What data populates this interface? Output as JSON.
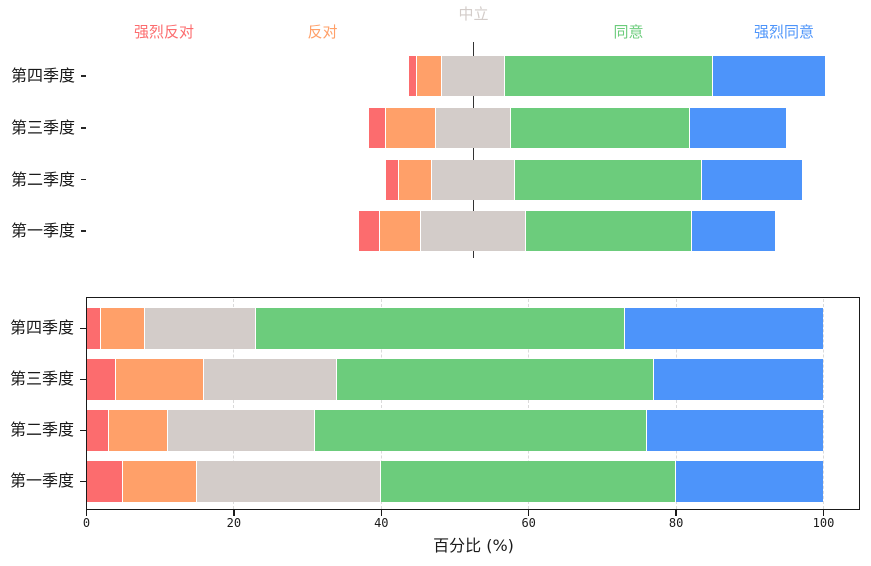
{
  "figure": {
    "background": "#ffffff",
    "text_color": "#1a1a1a",
    "midline_color": "#333333",
    "frame_color": "#1a1a1a",
    "grid_color": "#dadada"
  },
  "chart_data": [
    {
      "type": "bar",
      "variant": "horizontal-diverging-stacked-likert",
      "title": "",
      "categories": [
        "第四季度",
        "第三季度",
        "第二季度",
        "第一季度"
      ],
      "series": [
        {
          "name": "强烈反对",
          "color": "#FC6C6E",
          "values": [
            2,
            4,
            3,
            5
          ]
        },
        {
          "name": "反对",
          "color": "#FFA069",
          "values": [
            6,
            12,
            8,
            10
          ]
        },
        {
          "name": "中立",
          "color": "#D3CCC9",
          "values": [
            15,
            18,
            20,
            25
          ]
        },
        {
          "name": "同意",
          "color": "#6CCC7C",
          "values": [
            50,
            43,
            45,
            40
          ]
        },
        {
          "name": "强烈同意",
          "color": "#4D94FA",
          "values": [
            27,
            23,
            24,
            20
          ]
        }
      ],
      "unit": "percent",
      "neutral_centered": true,
      "legend_position": "top-as-colored-headers",
      "axes_visible": false
    },
    {
      "type": "bar",
      "variant": "horizontal-stacked-percent",
      "title": "",
      "categories": [
        "第四季度",
        "第三季度",
        "第二季度",
        "第一季度"
      ],
      "series": [
        {
          "name": "强烈反对",
          "color": "#FC6C6E",
          "values": [
            2,
            4,
            3,
            5
          ]
        },
        {
          "name": "反对",
          "color": "#FFA069",
          "values": [
            6,
            12,
            8,
            10
          ]
        },
        {
          "name": "中立",
          "color": "#D3CCC9",
          "values": [
            15,
            18,
            20,
            25
          ]
        },
        {
          "name": "同意",
          "color": "#6CCC7C",
          "values": [
            50,
            43,
            45,
            40
          ]
        },
        {
          "name": "强烈同意",
          "color": "#4D94FA",
          "values": [
            27,
            23,
            24,
            20
          ]
        }
      ],
      "unit": "percent",
      "xlabel": "百分比 (%)",
      "xticks": [
        0,
        20,
        40,
        60,
        80,
        100
      ],
      "xlim": [
        0,
        105
      ],
      "grid": {
        "axis": "x",
        "style": "dashed",
        "on": true
      },
      "axes_visible": true
    }
  ]
}
